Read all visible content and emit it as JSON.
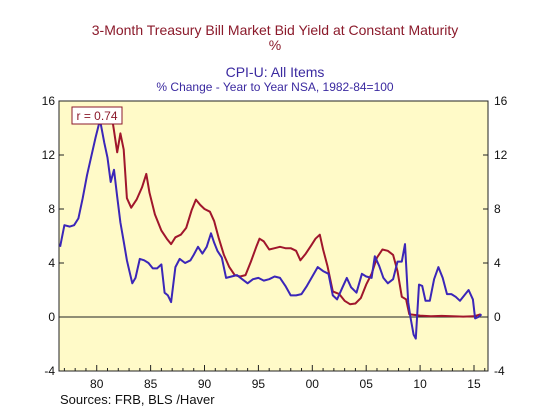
{
  "title_line1": "3-Month Treasury Bill Market Bid Yield at Constant Maturity",
  "title_line1_unit": "%",
  "title_line2": "CPI-U: All Items",
  "title_line2_sub": "% Change - Year to Year    NSA, 1982-84=100",
  "annotation": "r = 0.74",
  "source": "Sources:  FRB, BLS /Haver",
  "colors": {
    "tbill": "#a0162c",
    "cpi": "#3b26b8",
    "plot_bg": "#fffac8"
  },
  "chart_data": {
    "type": "line",
    "xlim": [
      1976.5,
      2016.3
    ],
    "ylim": [
      -4,
      16
    ],
    "x_ticks": [
      1980,
      1985,
      1990,
      1995,
      2000,
      2005,
      2010,
      2015
    ],
    "x_tick_labels": [
      "80",
      "85",
      "90",
      "95",
      "00",
      "05",
      "10",
      "15"
    ],
    "y_ticks": [
      -4,
      0,
      4,
      8,
      12,
      16
    ],
    "y_tick_labels": [
      "-4",
      "0",
      "4",
      "8",
      "12",
      "16"
    ],
    "grid": false,
    "series": [
      {
        "name": "3-Month Treasury Bill Market Bid Yield at Constant Maturity",
        "key": "tbill",
        "x": [
          1981.0,
          1981.3,
          1981.6,
          1981.9,
          1982.2,
          1982.5,
          1982.8,
          1983.2,
          1983.7,
          1984.2,
          1984.6,
          1984.9,
          1985.4,
          1986.0,
          1986.5,
          1986.9,
          1987.3,
          1987.8,
          1988.3,
          1988.8,
          1989.2,
          1989.6,
          1990.0,
          1990.5,
          1990.9,
          1991.3,
          1991.8,
          1992.3,
          1992.8,
          1993.3,
          1993.8,
          1994.3,
          1994.8,
          1995.1,
          1995.5,
          1996.0,
          1996.5,
          1997.0,
          1997.5,
          1998.0,
          1998.5,
          1998.9,
          1999.4,
          1999.9,
          2000.3,
          2000.7,
          2001.0,
          2001.4,
          2001.9,
          2002.5,
          2003.0,
          2003.5,
          2004.0,
          2004.5,
          2005.0,
          2005.5,
          2006.0,
          2006.5,
          2007.0,
          2007.5,
          2007.9,
          2008.3,
          2008.7,
          2009.0,
          2010.0,
          2011.0,
          2012.0,
          2013.0,
          2014.0,
          2015.0,
          2015.6
        ],
        "y": [
          14.8,
          15.4,
          13.8,
          12.2,
          13.6,
          12.4,
          8.8,
          8.1,
          8.7,
          9.6,
          10.6,
          9.2,
          7.6,
          6.4,
          5.8,
          5.4,
          5.9,
          6.1,
          6.6,
          7.9,
          8.7,
          8.3,
          8.0,
          7.8,
          7.1,
          5.9,
          4.6,
          3.7,
          3.1,
          3.0,
          3.1,
          4.1,
          5.2,
          5.8,
          5.6,
          5.0,
          5.1,
          5.2,
          5.1,
          5.1,
          4.9,
          4.2,
          4.7,
          5.3,
          5.8,
          6.1,
          5.0,
          3.8,
          1.9,
          1.7,
          1.2,
          0.95,
          1.0,
          1.4,
          2.4,
          3.2,
          4.4,
          5.0,
          4.9,
          4.6,
          3.4,
          1.5,
          1.3,
          0.2,
          0.1,
          0.05,
          0.08,
          0.05,
          0.03,
          0.05,
          0.2
        ]
      },
      {
        "name": "CPI-U: All Items",
        "key": "cpi",
        "x": [
          1976.6,
          1977.0,
          1977.5,
          1977.9,
          1978.3,
          1978.7,
          1979.1,
          1979.5,
          1979.9,
          1980.3,
          1980.7,
          1981.0,
          1981.3,
          1981.6,
          1981.9,
          1982.2,
          1982.5,
          1982.8,
          1983.0,
          1983.3,
          1983.6,
          1984.0,
          1984.4,
          1984.8,
          1985.2,
          1985.6,
          1986.0,
          1986.3,
          1986.6,
          1986.9,
          1987.3,
          1987.7,
          1988.2,
          1988.7,
          1989.0,
          1989.4,
          1989.8,
          1990.2,
          1990.6,
          1990.9,
          1991.2,
          1991.6,
          1992.0,
          1992.5,
          1993.0,
          1993.5,
          1994.0,
          1994.5,
          1995.0,
          1995.5,
          1996.0,
          1996.5,
          1997.0,
          1997.5,
          1998.0,
          1998.5,
          1999.0,
          1999.5,
          2000.0,
          2000.5,
          2001.0,
          2001.5,
          2001.9,
          2002.3,
          2002.8,
          2003.2,
          2003.6,
          2004.1,
          2004.6,
          2005.0,
          2005.5,
          2005.8,
          2006.2,
          2006.6,
          2007.0,
          2007.5,
          2007.9,
          2008.3,
          2008.6,
          2008.9,
          2009.1,
          2009.4,
          2009.6,
          2009.9,
          2010.2,
          2010.5,
          2010.9,
          2011.3,
          2011.7,
          2012.1,
          2012.5,
          2012.9,
          2013.3,
          2013.7,
          2014.1,
          2014.5,
          2014.9,
          2015.1,
          2015.4,
          2015.7
        ],
        "y": [
          5.2,
          6.8,
          6.7,
          6.8,
          7.3,
          8.8,
          10.5,
          11.9,
          13.3,
          14.6,
          12.9,
          11.8,
          10.0,
          10.9,
          8.9,
          7.0,
          5.6,
          4.2,
          3.5,
          2.5,
          2.9,
          4.3,
          4.2,
          4.0,
          3.6,
          3.6,
          3.9,
          1.8,
          1.6,
          1.1,
          3.7,
          4.3,
          4.0,
          4.2,
          4.6,
          5.2,
          4.7,
          5.2,
          6.2,
          5.5,
          4.9,
          4.4,
          2.9,
          3.0,
          3.1,
          2.8,
          2.5,
          2.8,
          2.9,
          2.7,
          2.8,
          3.0,
          2.9,
          2.3,
          1.6,
          1.6,
          1.7,
          2.3,
          3.0,
          3.7,
          3.4,
          3.2,
          1.6,
          1.3,
          2.2,
          2.9,
          2.2,
          1.8,
          3.2,
          3.0,
          2.9,
          4.5,
          3.8,
          2.9,
          2.5,
          2.8,
          4.1,
          4.1,
          5.4,
          1.1,
          0.0,
          -1.3,
          -1.6,
          2.4,
          2.3,
          1.2,
          1.2,
          2.8,
          3.7,
          2.9,
          1.7,
          1.7,
          1.5,
          1.2,
          1.6,
          2.0,
          1.3,
          -0.1,
          0.0,
          0.2
        ]
      }
    ]
  }
}
